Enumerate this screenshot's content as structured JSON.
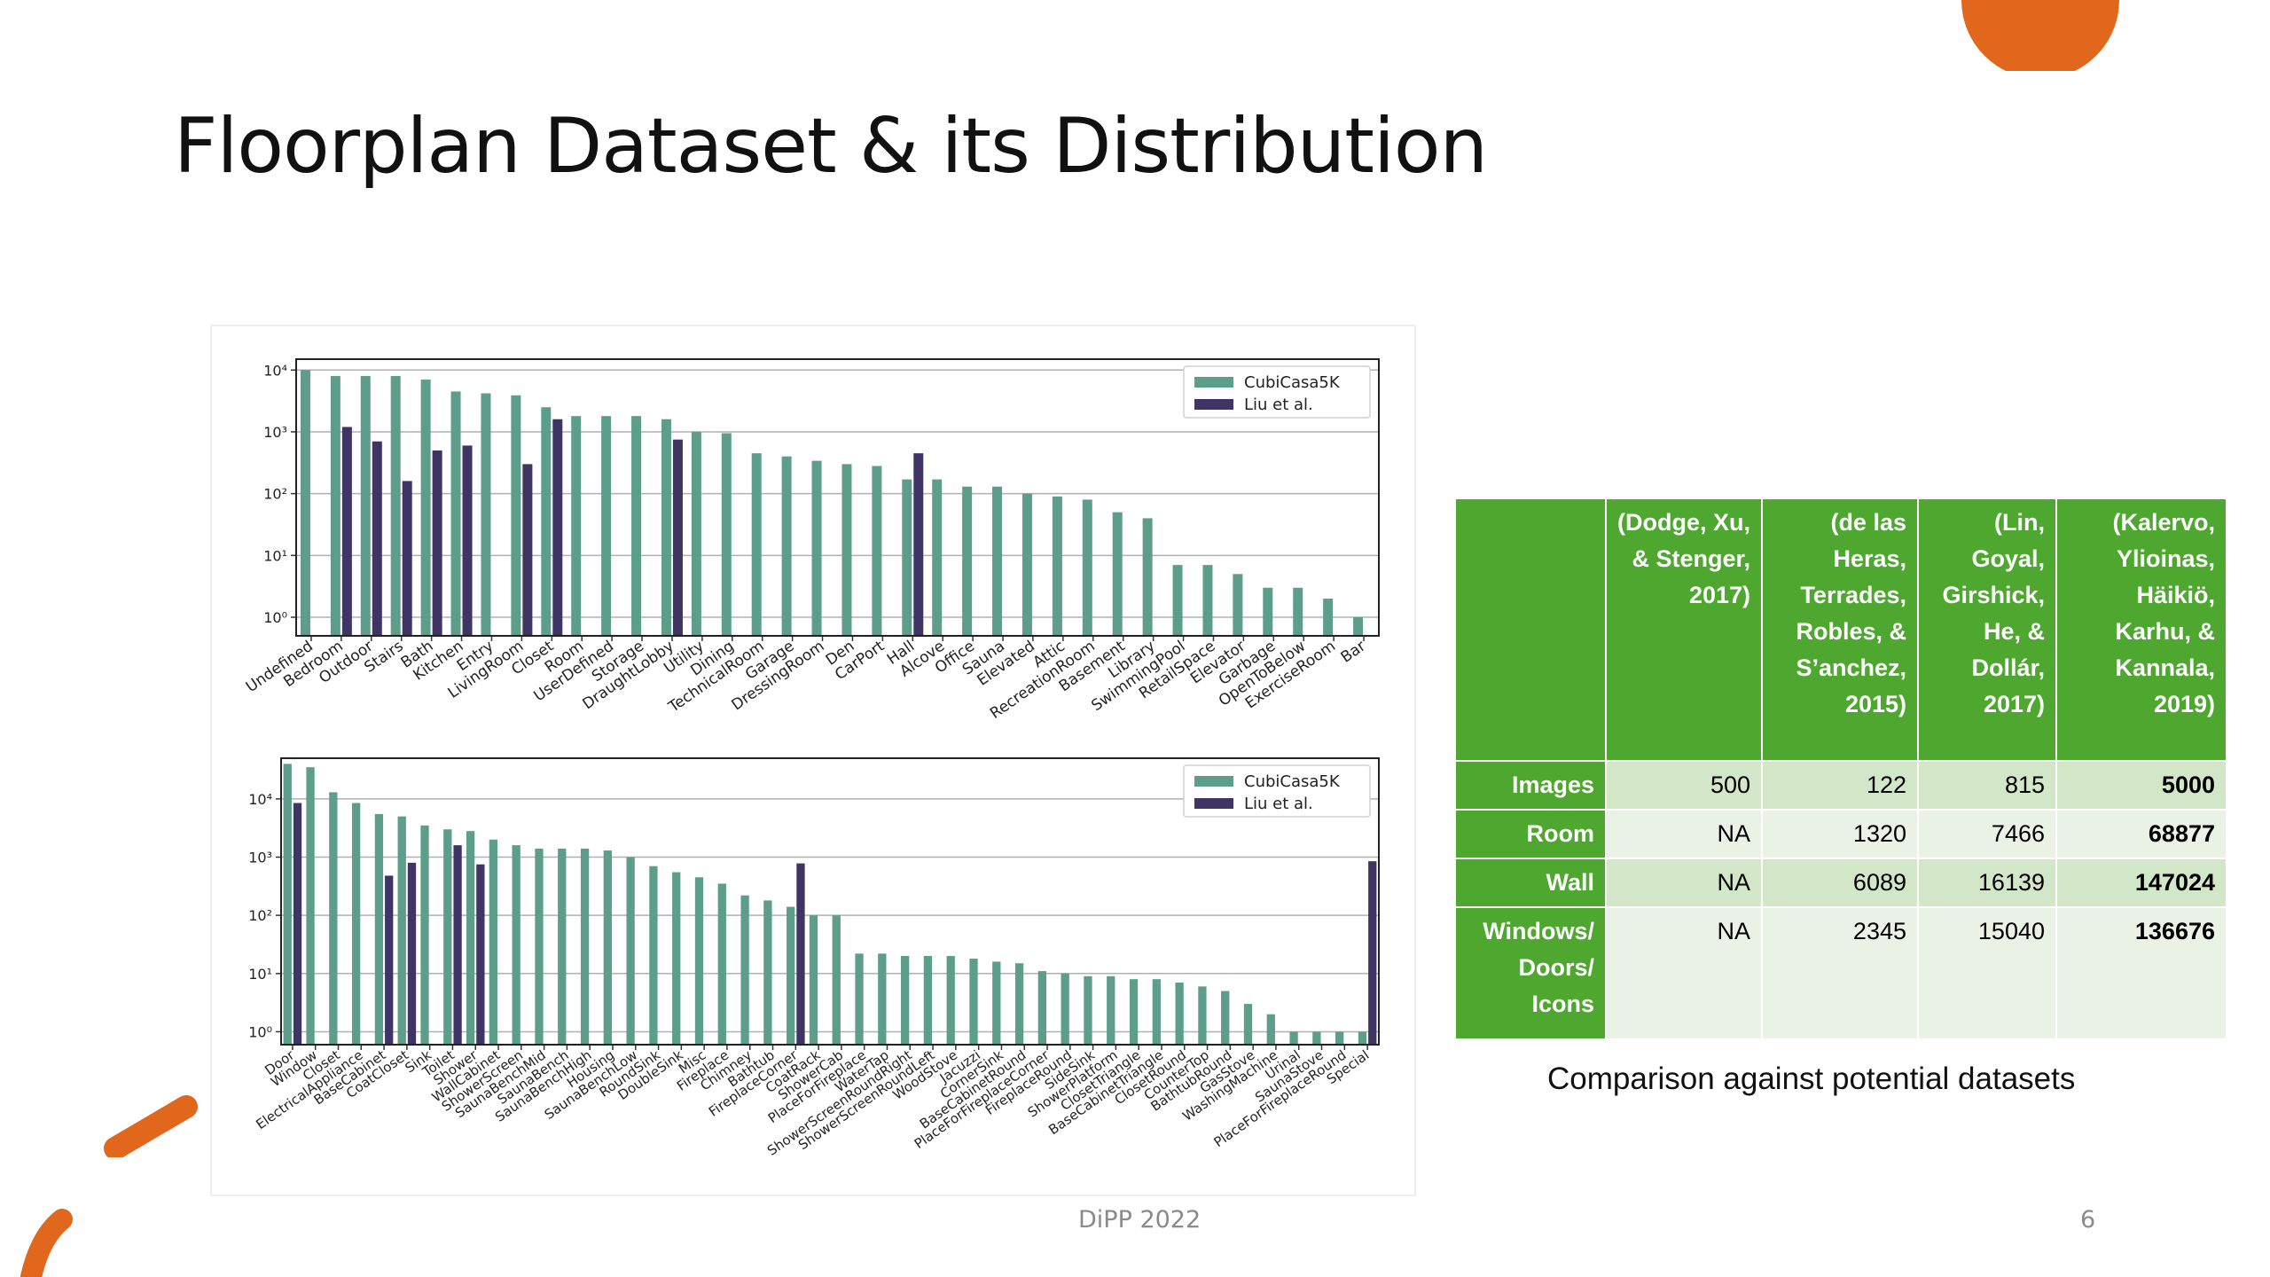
{
  "slide": {
    "title": "Floorplan Dataset & its Distribution",
    "footer": "DiPP 2022",
    "page_number": "6",
    "accent_color": "#e1671d"
  },
  "chart_data": [
    {
      "type": "bar",
      "yscale": "log",
      "ylim": [
        0.5,
        15000
      ],
      "ytick_values": [
        1,
        10,
        100,
        1000,
        10000
      ],
      "ytick_labels": [
        "10⁰",
        "10¹",
        "10²",
        "10³",
        "10⁴"
      ],
      "grid": "horizontal",
      "legend_position": "top-right",
      "categories": [
        "Undefined",
        "Bedroom",
        "Outdoor",
        "Stairs",
        "Bath",
        "Kitchen",
        "Entry",
        "LivingRoom",
        "Closet",
        "Room",
        "UserDefined",
        "Storage",
        "DraughtLobby",
        "Utility",
        "Dining",
        "TechnicalRoom",
        "Garage",
        "DressingRoom",
        "Den",
        "CarPort",
        "Hall",
        "Alcove",
        "Office",
        "Sauna",
        "Elevated",
        "Attic",
        "RecreationRoom",
        "Basement",
        "Library",
        "SwimmingPool",
        "RetailSpace",
        "Elevator",
        "Garbage",
        "OpenToBelow",
        "ExerciseRoom",
        "Bar"
      ],
      "series": [
        {
          "name": "CubiCasa5K",
          "color": "#5c9e89",
          "values": [
            10000,
            8000,
            8000,
            8000,
            7000,
            4500,
            4200,
            3900,
            2500,
            1800,
            1800,
            1800,
            1600,
            1000,
            950,
            450,
            400,
            340,
            300,
            280,
            170,
            170,
            130,
            130,
            100,
            90,
            80,
            50,
            40,
            7,
            7,
            5,
            3,
            3,
            2,
            1
          ]
        },
        {
          "name": "Liu et al.",
          "color": "#3f3565",
          "values": [
            null,
            1200,
            700,
            160,
            500,
            600,
            null,
            300,
            1600,
            null,
            null,
            null,
            750,
            null,
            null,
            null,
            null,
            null,
            null,
            null,
            450,
            null,
            null,
            null,
            null,
            null,
            null,
            null,
            null,
            null,
            null,
            null,
            null,
            null,
            null,
            null
          ]
        }
      ]
    },
    {
      "type": "bar",
      "yscale": "log",
      "ylim": [
        0.6,
        50000
      ],
      "ytick_values": [
        1,
        10,
        100,
        1000,
        10000
      ],
      "ytick_labels": [
        "10⁰",
        "10¹",
        "10²",
        "10³",
        "10⁴"
      ],
      "grid": "horizontal",
      "legend_position": "top-right",
      "categories": [
        "Door",
        "Window",
        "Closet",
        "ElectricalAppliance",
        "BaseCabinet",
        "CoatCloset",
        "Sink",
        "Toilet",
        "Shower",
        "WallCabinet",
        "ShowerScreen",
        "SaunaBenchMid",
        "SaunaBench",
        "SaunaBenchHigh",
        "Housing",
        "SaunaBenchLow",
        "RoundSink",
        "DoubleSink",
        "Misc",
        "Fireplace",
        "Chimney",
        "Bathtub",
        "FireplaceCorner",
        "CoatRack",
        "ShowerCab",
        "PlaceForFireplace",
        "WaterTap",
        "ShowerScreenRoundRight",
        "ShowerScreenRoundLeft",
        "WoodStove",
        "Jacuzzi",
        "CornerSink",
        "BaseCabinetRound",
        "PlaceForFireplaceCorner",
        "FireplaceRound",
        "SideSink",
        "ShowerPlatform",
        "ClosetTriangle",
        "BaseCabinetTriangle",
        "ClosetRound",
        "CounterTop",
        "BathtubRound",
        "GasStove",
        "WashingMachine",
        "Urinal",
        "SaunaStove",
        "PlaceForFireplaceRound",
        "Special"
      ],
      "series": [
        {
          "name": "CubiCasa5K",
          "color": "#5c9e89",
          "values": [
            40000,
            35000,
            13000,
            8500,
            5500,
            5000,
            3500,
            3000,
            2800,
            2000,
            1600,
            1400,
            1400,
            1400,
            1300,
            1000,
            700,
            550,
            450,
            350,
            220,
            180,
            140,
            100,
            100,
            22,
            22,
            20,
            20,
            20,
            18,
            16,
            15,
            11,
            10,
            9,
            9,
            8,
            8,
            7,
            6,
            5,
            3,
            2,
            1,
            1,
            1,
            1
          ]
        },
        {
          "name": "Liu et al.",
          "color": "#3f3565",
          "values": [
            8500,
            null,
            null,
            null,
            480,
            800,
            null,
            1600,
            750,
            null,
            null,
            null,
            null,
            null,
            null,
            null,
            null,
            null,
            null,
            null,
            null,
            null,
            780,
            null,
            null,
            null,
            null,
            null,
            null,
            null,
            null,
            null,
            null,
            null,
            null,
            null,
            null,
            null,
            null,
            null,
            null,
            null,
            null,
            null,
            null,
            null,
            null,
            850
          ]
        }
      ]
    }
  ],
  "comparison_table": {
    "headers": [
      "",
      "(Dodge, Xu, & Stenger, 2017)",
      "(de las Heras, Terrades, Robles, & S’anchez, 2015)",
      "(Lin, Goyal, Girshick, He, & Dollár, 2017)",
      "(Kalervo, Ylioinas, Häikiö, Karhu, & Kannala, 2019)"
    ],
    "rows": [
      {
        "label": "Images",
        "values": [
          "500",
          "122",
          "815",
          "5000"
        ]
      },
      {
        "label": "Room",
        "values": [
          "NA",
          "1320",
          "7466",
          "68877"
        ]
      },
      {
        "label": "Wall",
        "values": [
          "NA",
          "6089",
          "16139",
          "147024"
        ]
      },
      {
        "label": "Windows/ Doors/ Icons",
        "values": [
          "NA",
          "2345",
          "15040",
          "136676"
        ]
      }
    ],
    "header_color": "#4ea72e",
    "caption": "Comparison against potential datasets"
  }
}
